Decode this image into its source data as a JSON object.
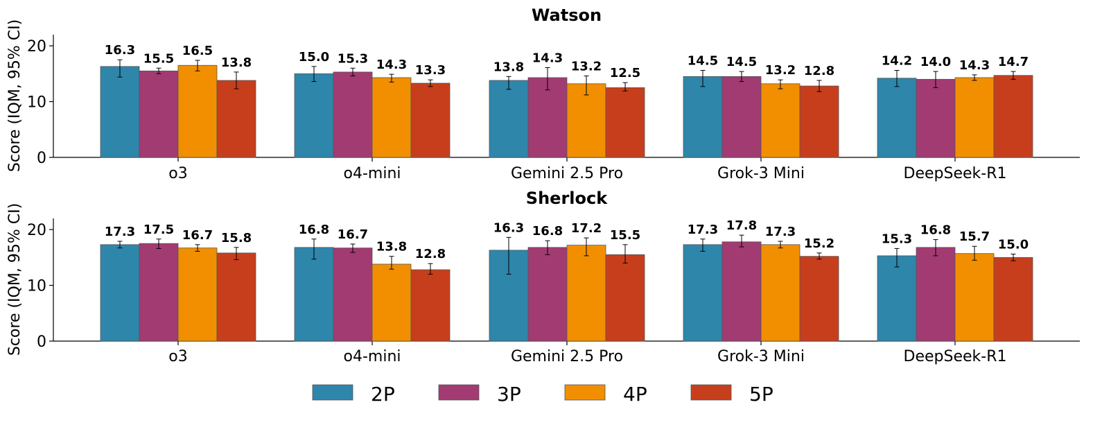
{
  "legend": {
    "entries": [
      "2P",
      "3P",
      "4P",
      "5P"
    ]
  },
  "colors": {
    "2P": "#2e86ab",
    "3P": "#a23b72",
    "4P": "#f18f01",
    "5P": "#c73e1d",
    "edge": "#555555"
  },
  "chart_data": [
    {
      "type": "bar",
      "title": "Watson",
      "ylabel": "Score (IQM, 95% CI)",
      "ylim": [
        0,
        22
      ],
      "yticks": [
        0,
        10,
        20
      ],
      "categories": [
        "o3",
        "o4-mini",
        "Gemini 2.5 Pro",
        "Grok-3 Mini",
        "DeepSeek-R1"
      ],
      "series": [
        {
          "name": "2P",
          "values": [
            16.3,
            15.0,
            13.8,
            14.5,
            14.2
          ],
          "ci": [
            [
              14.4,
              17.5
            ],
            [
              13.6,
              16.3
            ],
            [
              12.2,
              14.5
            ],
            [
              12.7,
              15.6
            ],
            [
              12.7,
              15.6
            ]
          ]
        },
        {
          "name": "3P",
          "values": [
            15.5,
            15.3,
            14.3,
            14.5,
            14.0
          ],
          "ci": [
            [
              15.0,
              16.0
            ],
            [
              14.6,
              16.0
            ],
            [
              12.1,
              16.1
            ],
            [
              13.6,
              15.4
            ],
            [
              12.5,
              15.4
            ]
          ]
        },
        {
          "name": "4P",
          "values": [
            16.5,
            14.3,
            13.2,
            13.2,
            14.3
          ],
          "ci": [
            [
              15.5,
              17.4
            ],
            [
              13.5,
              14.9
            ],
            [
              11.2,
              14.6
            ],
            [
              12.3,
              13.9
            ],
            [
              13.8,
              14.8
            ]
          ]
        },
        {
          "name": "5P",
          "values": [
            13.8,
            13.3,
            12.5,
            12.8,
            14.7
          ],
          "ci": [
            [
              12.3,
              15.3
            ],
            [
              12.7,
              13.9
            ],
            [
              11.9,
              13.4
            ],
            [
              11.8,
              13.8
            ],
            [
              14.0,
              15.4
            ]
          ]
        }
      ]
    },
    {
      "type": "bar",
      "title": "Sherlock",
      "ylabel": "Score (IQM, 95% CI)",
      "ylim": [
        0,
        22
      ],
      "yticks": [
        0,
        10,
        20
      ],
      "categories": [
        "o3",
        "o4-mini",
        "Gemini 2.5 Pro",
        "Grok-3 Mini",
        "DeepSeek-R1"
      ],
      "series": [
        {
          "name": "2P",
          "values": [
            17.3,
            16.8,
            16.3,
            17.3,
            15.3
          ],
          "ci": [
            [
              16.7,
              17.9
            ],
            [
              14.7,
              18.3
            ],
            [
              12.0,
              18.6
            ],
            [
              16.1,
              18.3
            ],
            [
              13.3,
              16.6
            ]
          ]
        },
        {
          "name": "3P",
          "values": [
            17.5,
            16.7,
            16.8,
            17.8,
            16.8
          ],
          "ci": [
            [
              16.6,
              18.3
            ],
            [
              15.9,
              17.4
            ],
            [
              15.5,
              18.0
            ],
            [
              16.9,
              19.0
            ],
            [
              15.3,
              18.2
            ]
          ]
        },
        {
          "name": "4P",
          "values": [
            16.7,
            13.8,
            17.2,
            17.3,
            15.7
          ],
          "ci": [
            [
              16.1,
              17.3
            ],
            [
              12.9,
              15.2
            ],
            [
              15.3,
              18.5
            ],
            [
              16.7,
              17.9
            ],
            [
              14.5,
              17.0
            ]
          ]
        },
        {
          "name": "5P",
          "values": [
            15.8,
            12.8,
            15.5,
            15.2,
            15.0
          ],
          "ci": [
            [
              14.6,
              16.8
            ],
            [
              12.0,
              13.9
            ],
            [
              14.0,
              17.3
            ],
            [
              14.7,
              15.8
            ],
            [
              14.4,
              15.6
            ]
          ]
        }
      ]
    }
  ]
}
